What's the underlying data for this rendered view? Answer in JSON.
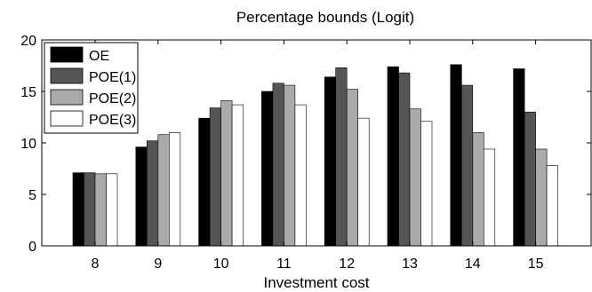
{
  "chart_data": {
    "type": "bar",
    "title": "Percentage bounds (Logit)",
    "xlabel": "Investment cost",
    "ylabel": "",
    "ylim": [
      0,
      20
    ],
    "yticks": [
      0,
      5,
      10,
      15,
      20
    ],
    "categories": [
      "8",
      "9",
      "10",
      "11",
      "12",
      "13",
      "14",
      "15"
    ],
    "legend_position": "top-left",
    "grid": false,
    "series": [
      {
        "name": "OE",
        "color": "#000000",
        "values": [
          7.1,
          9.6,
          12.4,
          15.0,
          16.4,
          17.4,
          17.6,
          17.2
        ]
      },
      {
        "name": "POE(1)",
        "color": "#555555",
        "values": [
          7.1,
          10.2,
          13.4,
          15.8,
          17.3,
          16.8,
          15.6,
          13.0
        ]
      },
      {
        "name": "POE(2)",
        "color": "#aaaaaa",
        "values": [
          7.0,
          10.8,
          14.1,
          15.6,
          15.2,
          13.3,
          11.0,
          9.4
        ]
      },
      {
        "name": "POE(3)",
        "color": "#ffffff",
        "values": [
          7.0,
          11.0,
          13.7,
          13.7,
          12.4,
          12.1,
          9.4,
          7.8
        ]
      }
    ]
  }
}
